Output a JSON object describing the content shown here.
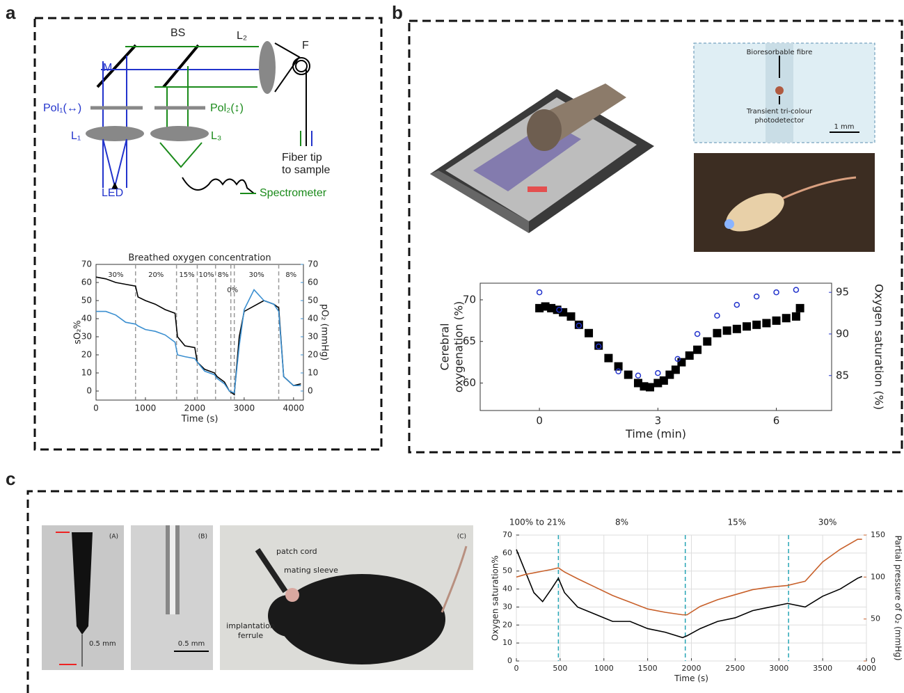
{
  "panel_labels": [
    "a",
    "b",
    "c"
  ],
  "diagram_labels": [
    "M",
    "BS",
    "L₂",
    "F",
    "Pol₁(↔)",
    "Pol₂(↕)",
    "L₁",
    "L₃",
    "LED",
    "Fiber tip",
    "to sample",
    "Spectrometer"
  ],
  "photo_labels_b": [
    "Bioresorbable fibre",
    "Transient tri-colour",
    "photodetector",
    "1 mm"
  ],
  "photo_labels_c": [
    "(A)",
    "(B)",
    "(C)",
    "0.5 mm",
    "0.5 mm",
    "patch cord",
    "mating sleeve",
    "implantation",
    "ferrule"
  ],
  "chart_data": [
    {
      "type": "line",
      "title": "Breathed oxygen concentration",
      "xlabel": "Time (s)",
      "ylabel": "sO₂%",
      "y2label": "pO₂ (mmHg)",
      "xlim": [
        0,
        4200
      ],
      "xticks": [
        0,
        1000,
        2000,
        3000,
        4000
      ],
      "ylim": [
        -5,
        70
      ],
      "yticks": [
        0,
        10,
        20,
        30,
        40,
        50,
        60,
        70
      ],
      "y2lim": [
        -5,
        70
      ],
      "y2ticks": [
        0,
        10,
        20,
        30,
        40,
        50,
        60,
        70
      ],
      "grid": false,
      "boundary_color": "#999999",
      "phase_boundaries": [
        800,
        1630,
        2050,
        2420,
        2730,
        2800,
        3700
      ],
      "annotations": [
        "30%",
        "20%",
        "15%",
        "10%",
        "8%",
        "0%",
        "30%",
        "8%"
      ],
      "series": [
        {
          "color": "#000000",
          "marker": "none",
          "x": [
            0,
            200,
            400,
            600,
            800,
            850,
            1000,
            1200,
            1400,
            1600,
            1650,
            1800,
            2000,
            2050,
            2200,
            2400,
            2450,
            2600,
            2700,
            2800,
            2900,
            3000,
            3200,
            3400,
            3600,
            3700,
            3800,
            4000,
            4150
          ],
          "values": [
            63,
            62,
            60,
            59,
            58,
            52,
            50,
            48,
            45,
            43,
            30,
            25,
            24,
            16,
            12,
            10,
            8,
            5,
            0,
            -2,
            30,
            44,
            47,
            50,
            48,
            46,
            8,
            3,
            4
          ]
        },
        {
          "color": "#3b8fd0",
          "marker": "none",
          "axis": "y2",
          "x": [
            0,
            200,
            400,
            600,
            800,
            850,
            1000,
            1200,
            1400,
            1600,
            1650,
            1800,
            2000,
            2050,
            2200,
            2400,
            2450,
            2600,
            2700,
            2800,
            2900,
            3000,
            3200,
            3400,
            3600,
            3700,
            3800,
            4000,
            4150
          ],
          "values": [
            44,
            44,
            42,
            38,
            37,
            36,
            34,
            33,
            31,
            27,
            20,
            19,
            18,
            16,
            11,
            9,
            7,
            4,
            0,
            -1,
            25,
            45,
            56,
            50,
            48,
            44,
            8,
            3,
            3
          ]
        }
      ]
    },
    {
      "type": "scatter",
      "xlabel": "Time (min)",
      "ylabel": [
        "Cerebral",
        "oxygenation (%)"
      ],
      "y2label": "Oxygen saturation (%)",
      "xlim": [
        -1.5,
        7.4
      ],
      "xticks": [
        0,
        3,
        6
      ],
      "ylim": [
        56.7,
        72.0
      ],
      "yticks": [
        60,
        65,
        70
      ],
      "y2lim": [
        80.8,
        96.1
      ],
      "y2ticks": [
        85,
        90,
        95
      ],
      "grid": false,
      "series": [
        {
          "color": "#000000",
          "marker": "square",
          "x": [
            0,
            0.15,
            0.3,
            0.45,
            0.6,
            0.8,
            1,
            1.25,
            1.5,
            1.75,
            2,
            2.25,
            2.5,
            2.65,
            2.8,
            3,
            3.15,
            3.3,
            3.45,
            3.6,
            3.8,
            4,
            4.25,
            4.5,
            4.75,
            5,
            5.25,
            5.5,
            5.75,
            6,
            6.25,
            6.5,
            6.6
          ],
          "values": [
            69,
            69.2,
            69,
            68.8,
            68.5,
            68,
            67,
            66,
            64.5,
            63,
            62,
            61,
            60,
            59.6,
            59.5,
            60,
            60.3,
            61,
            61.6,
            62.5,
            63.3,
            64,
            65,
            66,
            66.3,
            66.5,
            66.8,
            67,
            67.2,
            67.5,
            67.8,
            68,
            69
          ]
        },
        {
          "color": "#2233cc",
          "marker": "circle",
          "axis": "y2",
          "x": [
            0,
            0.5,
            1,
            1.5,
            2,
            2.5,
            3,
            3.5,
            4,
            4.5,
            5,
            5.5,
            6,
            6.5
          ],
          "values": [
            95,
            92.9,
            91,
            88.5,
            85.5,
            85,
            85.3,
            87,
            90,
            92.2,
            93.5,
            94.5,
            95,
            95.3
          ]
        }
      ]
    },
    {
      "type": "line",
      "xlabel": "Time (s)",
      "ylabel": "Oxygen saturation%",
      "y2label": "Partial pressure of O₂ (mmHg)",
      "xlim": [
        0,
        4000
      ],
      "xticks": [
        0,
        500,
        1000,
        1500,
        2000,
        2500,
        3000,
        3500,
        4000
      ],
      "ylim": [
        0,
        70
      ],
      "yticks": [
        0,
        10,
        20,
        30,
        40,
        50,
        60,
        70
      ],
      "y2lim": [
        0,
        150
      ],
      "y2ticks": [
        0,
        50,
        100,
        150
      ],
      "grid": true,
      "boundary_color": "#26a5b5",
      "phase_boundaries": [
        480,
        1930,
        3110
      ],
      "annotations": [
        "100% to 21%",
        "8%",
        "15%",
        "30%"
      ],
      "series": [
        {
          "color": "#000000",
          "marker": "none",
          "x": [
            0,
            100,
            200,
            300,
            400,
            480,
            550,
            700,
            900,
            1100,
            1300,
            1500,
            1700,
            1900,
            1950,
            2100,
            2300,
            2500,
            2700,
            2900,
            3100,
            3300,
            3500,
            3700,
            3900,
            3950
          ],
          "values": [
            62,
            50,
            38,
            33,
            40,
            46,
            38,
            30,
            26,
            22,
            22,
            18,
            16,
            13,
            14,
            18,
            22,
            24,
            28,
            30,
            32,
            30,
            36,
            40,
            46,
            47
          ]
        },
        {
          "color": "#c8602a",
          "marker": "none",
          "axis": "y2",
          "x": [
            0,
            100,
            200,
            300,
            400,
            480,
            550,
            700,
            900,
            1100,
            1300,
            1500,
            1700,
            1900,
            1950,
            2100,
            2300,
            2500,
            2700,
            2900,
            3100,
            3300,
            3500,
            3700,
            3900,
            3950
          ],
          "values": [
            100,
            103,
            105,
            107,
            109,
            111,
            106,
            98,
            88,
            78,
            70,
            62,
            58,
            55,
            55,
            65,
            73,
            79,
            85,
            88,
            90,
            95,
            118,
            133,
            145,
            145
          ]
        }
      ]
    }
  ]
}
